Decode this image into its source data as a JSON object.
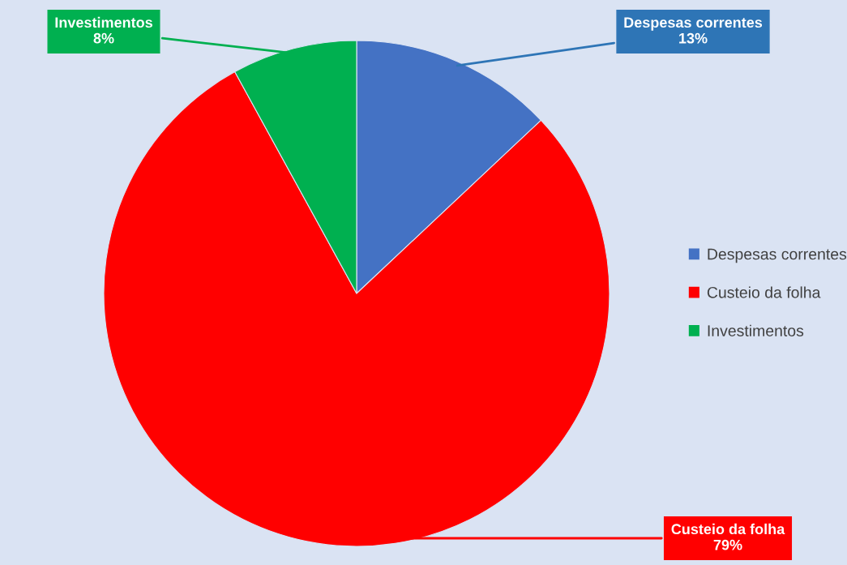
{
  "chart_data": {
    "type": "pie",
    "categories": [
      "Despesas correntes",
      "Custeio da folha",
      "Investimentos"
    ],
    "values": [
      13,
      79,
      8
    ],
    "colors": [
      "#4472c4",
      "#ff0000",
      "#00b050"
    ],
    "value_labels": [
      "13%",
      "79%",
      "8%"
    ],
    "legend": "right"
  }
}
